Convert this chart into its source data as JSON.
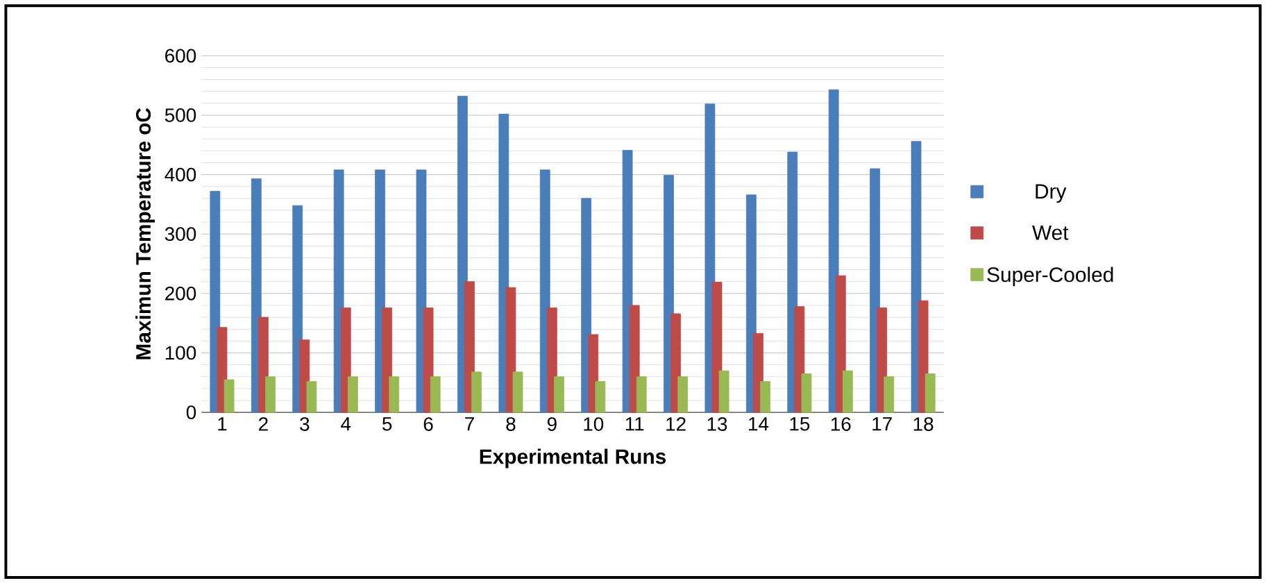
{
  "chart_data": {
    "type": "bar",
    "xlabel": "Experimental Runs",
    "ylabel": "Maximun Temperature oC",
    "categories": [
      "1",
      "2",
      "3",
      "4",
      "5",
      "6",
      "7",
      "8",
      "9",
      "10",
      "11",
      "12",
      "13",
      "14",
      "15",
      "16",
      "17",
      "18"
    ],
    "series": [
      {
        "name": "Dry",
        "color": "#4a7ebb",
        "values": [
          372,
          393,
          348,
          408,
          408,
          408,
          532,
          502,
          408,
          360,
          441,
          399,
          519,
          366,
          438,
          543,
          410,
          456
        ]
      },
      {
        "name": "Wet",
        "color": "#be4b48",
        "values": [
          143,
          160,
          122,
          176,
          176,
          176,
          220,
          210,
          176,
          131,
          180,
          166,
          219,
          133,
          178,
          230,
          176,
          188
        ]
      },
      {
        "name": "Super-Cooled",
        "color": "#98b954",
        "values": [
          55,
          60,
          52,
          60,
          60,
          60,
          68,
          68,
          60,
          52,
          60,
          60,
          70,
          52,
          65,
          70,
          60,
          65
        ]
      }
    ],
    "ylim": [
      0,
      600
    ],
    "yticks": [
      0,
      100,
      200,
      300,
      400,
      500,
      600
    ],
    "grid": "y",
    "legend": "right"
  }
}
